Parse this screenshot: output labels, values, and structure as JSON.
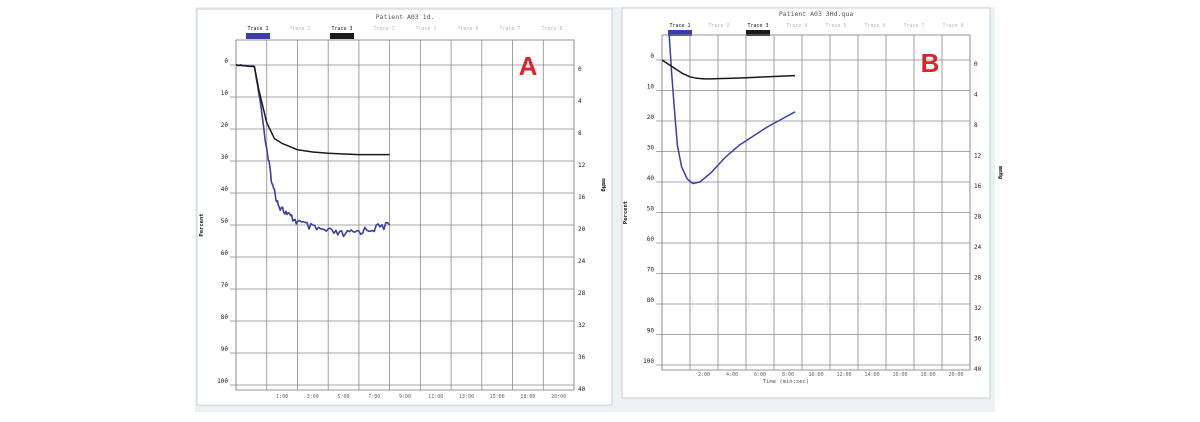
{
  "colors": {
    "page_bg": "#ffffff",
    "backdrop": "#ecf1f4",
    "panel_bg": "#ffffff",
    "grid": "#8a8a8a",
    "trace1": "#3a3fa8",
    "trace2": "#1a1a1a",
    "legend_inactive": "#b9b9b9",
    "panel_letter": "#d8262a",
    "text": "#1a1a1a"
  },
  "chart_data": [
    {
      "type": "line",
      "panel_label": "A",
      "title": "Patient A03 1d.",
      "legend": {
        "placement": "top",
        "items": [
          {
            "label": "Trace 1",
            "active": true,
            "color": "#3a3fa8"
          },
          {
            "label": "Trace 2",
            "active": false
          },
          {
            "label": "Trace 3",
            "active": true,
            "color": "#1a1a1a"
          },
          {
            "label": "Trace 7",
            "active": false
          },
          {
            "label": "Trace 5",
            "active": false
          },
          {
            "label": "Trace 6",
            "active": false
          },
          {
            "label": "Trace 7",
            "active": false
          },
          {
            "label": "Trace 8",
            "active": false
          }
        ]
      },
      "ylabel_left": "Percent",
      "ylabel_right": "mmHg",
      "xlabel": "",
      "y_ticks_left": [
        "0",
        "10",
        "20",
        "30",
        "40",
        "50",
        "60",
        "70",
        "80",
        "90",
        "100"
      ],
      "y_ticks_right": [
        "0",
        "4",
        "8",
        "12",
        "16",
        "20",
        "24",
        "28",
        "32",
        "36",
        "40"
      ],
      "x_ticks": [
        "",
        "1:00",
        "3:00",
        "5:00",
        "7:00",
        "9:00",
        "11:00",
        "13:00",
        "15:00",
        "18:00",
        "20:00"
      ],
      "ylim": [
        0,
        100
      ],
      "xlim": [
        0,
        22
      ],
      "grid": true,
      "series": [
        {
          "color": "#3a3fa8",
          "x": [
            0,
            1.2,
            1.6,
            2.0,
            2.4,
            2.8,
            3.4,
            4.0,
            5.0,
            6.0,
            7.0,
            8.0,
            9.0,
            10.0
          ],
          "y": [
            0,
            0.5,
            12,
            27,
            38,
            44,
            47,
            49,
            51,
            52,
            53,
            52,
            51,
            50
          ],
          "noisy": true
        },
        {
          "color": "#1a1a1a",
          "x": [
            0,
            1.2,
            1.5,
            2.0,
            2.5,
            3.0,
            3.5,
            4.0,
            5.0,
            6.0,
            7.0,
            8.0,
            9.0,
            10.0
          ],
          "y": [
            0,
            0.5,
            8,
            18,
            23,
            24.5,
            25.5,
            26.5,
            27.2,
            27.6,
            27.8,
            28,
            28,
            28
          ],
          "noisy": false
        }
      ]
    },
    {
      "type": "line",
      "panel_label": "B",
      "title": "Patient A03 3Hd.qua",
      "legend": {
        "placement": "top",
        "items": [
          {
            "label": "Trace 1",
            "active": true,
            "color": "#3a3fa8"
          },
          {
            "label": "Trace 2",
            "active": false
          },
          {
            "label": "Trace 3",
            "active": true,
            "color": "#1a1a1a"
          },
          {
            "label": "Trace 4",
            "active": false
          },
          {
            "label": "Trace 5",
            "active": false
          },
          {
            "label": "Trace 6",
            "active": false
          },
          {
            "label": "Trace 7",
            "active": false
          },
          {
            "label": "Trace 8",
            "active": false
          }
        ]
      },
      "ylabel_left": "Percent",
      "ylabel_right": "mmHg",
      "xlabel": "Time (min:sec)",
      "y_ticks_left": [
        "0",
        "10",
        "20",
        "30",
        "40",
        "50",
        "60",
        "70",
        "80",
        "90",
        "100"
      ],
      "y_ticks_right": [
        "0",
        "4",
        "8",
        "12",
        "16",
        "20",
        "24",
        "28",
        "32",
        "36",
        "40"
      ],
      "x_ticks": [
        "",
        "2:00",
        "4:00",
        "6:00",
        "8:00",
        "10:00",
        "12:00",
        "14:00",
        "16:00",
        "18:00",
        "20:00"
      ],
      "ylim": [
        0,
        100
      ],
      "xlim": [
        0,
        22
      ],
      "grid": true,
      "series": [
        {
          "color": "#3a3fa8",
          "x": [
            0.5,
            0.7,
            0.9,
            1.1,
            1.4,
            1.8,
            2.2,
            2.7,
            3.5,
            4.5,
            5.5,
            6.5,
            7.5,
            8.5,
            9.5
          ],
          "y": [
            -9,
            5,
            17,
            28,
            35,
            39,
            40.5,
            40,
            37,
            32,
            28,
            25,
            22,
            19.5,
            17
          ],
          "noisy": false
        },
        {
          "color": "#1a1a1a",
          "x": [
            0,
            0.5,
            1.0,
            1.5,
            2.0,
            2.5,
            3.0,
            3.5,
            4.0,
            5.0,
            6.0,
            7.0,
            8.0,
            9.0,
            9.5
          ],
          "y": [
            0,
            1.5,
            3,
            4.5,
            5.5,
            6,
            6.2,
            6.2,
            6.1,
            6,
            5.8,
            5.6,
            5.4,
            5.2,
            5.1
          ],
          "noisy": false
        }
      ]
    }
  ]
}
